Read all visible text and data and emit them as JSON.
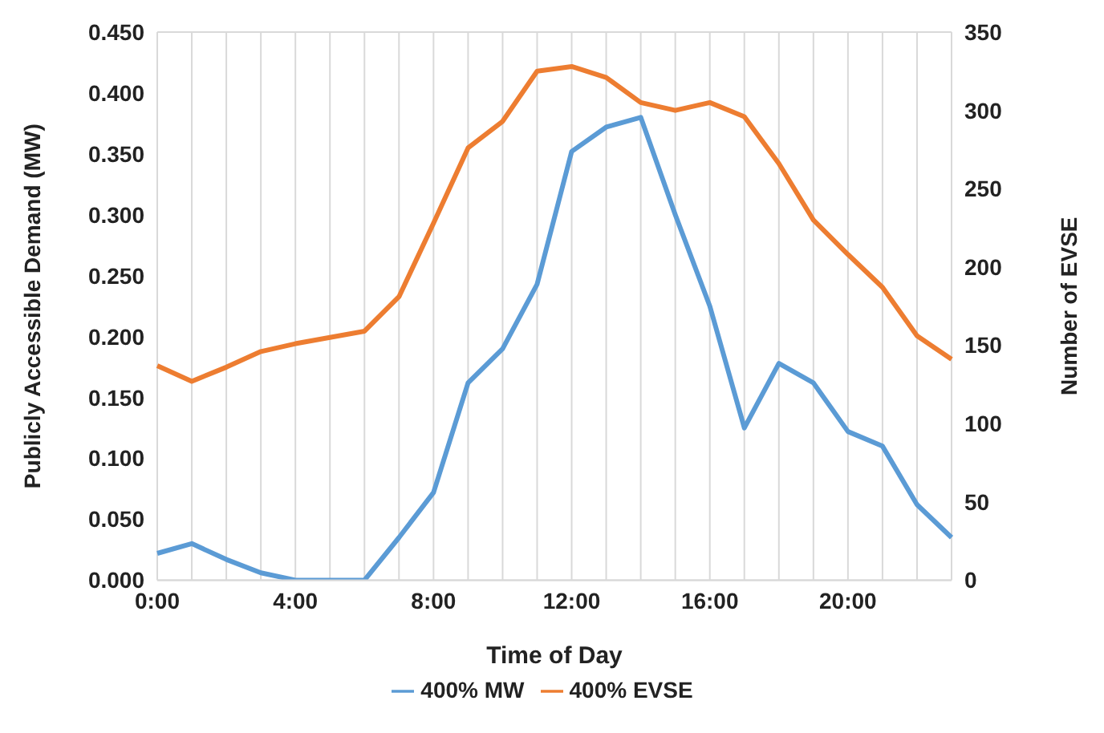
{
  "chart_data": {
    "type": "line",
    "xlabel": "Time of Day",
    "ylabel": "Publicly Accessible Demand (MW)",
    "y2label": "Number of EVSE",
    "categories": [
      "0:00",
      null,
      null,
      null,
      "4:00",
      null,
      null,
      null,
      "8:00",
      null,
      null,
      null,
      "12:00",
      null,
      null,
      null,
      "16:00",
      null,
      null,
      null,
      "20:00",
      null,
      null,
      null
    ],
    "series": [
      {
        "name": "400% MW",
        "color": "#5b9bd5",
        "values": [
          0.022,
          0.03,
          0.017,
          0.006,
          0,
          0,
          0,
          0.035,
          0.072,
          0.162,
          0.19,
          0.243,
          0.352,
          0.372,
          0.38,
          0.3,
          0.225,
          0.125,
          0.178,
          0.162,
          0.122,
          0.11,
          0.062,
          0.035
        ]
      },
      {
        "name": "400% EVSE",
        "color": "#ed7d31",
        "axis": "y2",
        "values": [
          137,
          127,
          136,
          146,
          151,
          155,
          159,
          181,
          228,
          276,
          293,
          325,
          328,
          321,
          305,
          300,
          305,
          296,
          266,
          230,
          208,
          187,
          156,
          141
        ]
      }
    ],
    "ylim": [
      0,
      0.45
    ],
    "yticks": [
      {
        "value": 0,
        "label": "0.000"
      },
      {
        "value": 0.05,
        "label": "0.050"
      },
      {
        "value": 0.1,
        "label": "0.100"
      },
      {
        "value": 0.15,
        "label": "0.150"
      },
      {
        "value": 0.2,
        "label": "0.200"
      },
      {
        "value": 0.25,
        "label": "0.250"
      },
      {
        "value": 0.3,
        "label": "0.300"
      },
      {
        "value": 0.35,
        "label": "0.350"
      },
      {
        "value": 0.4,
        "label": "0.400"
      },
      {
        "value": 0.45,
        "label": "0.450"
      }
    ],
    "y2lim": [
      0,
      350
    ],
    "y2ticks": [
      0,
      50,
      100,
      150,
      200,
      250,
      300,
      350
    ],
    "grid": true,
    "legend": "bottom",
    "marker": "none",
    "line_style": "solid"
  }
}
